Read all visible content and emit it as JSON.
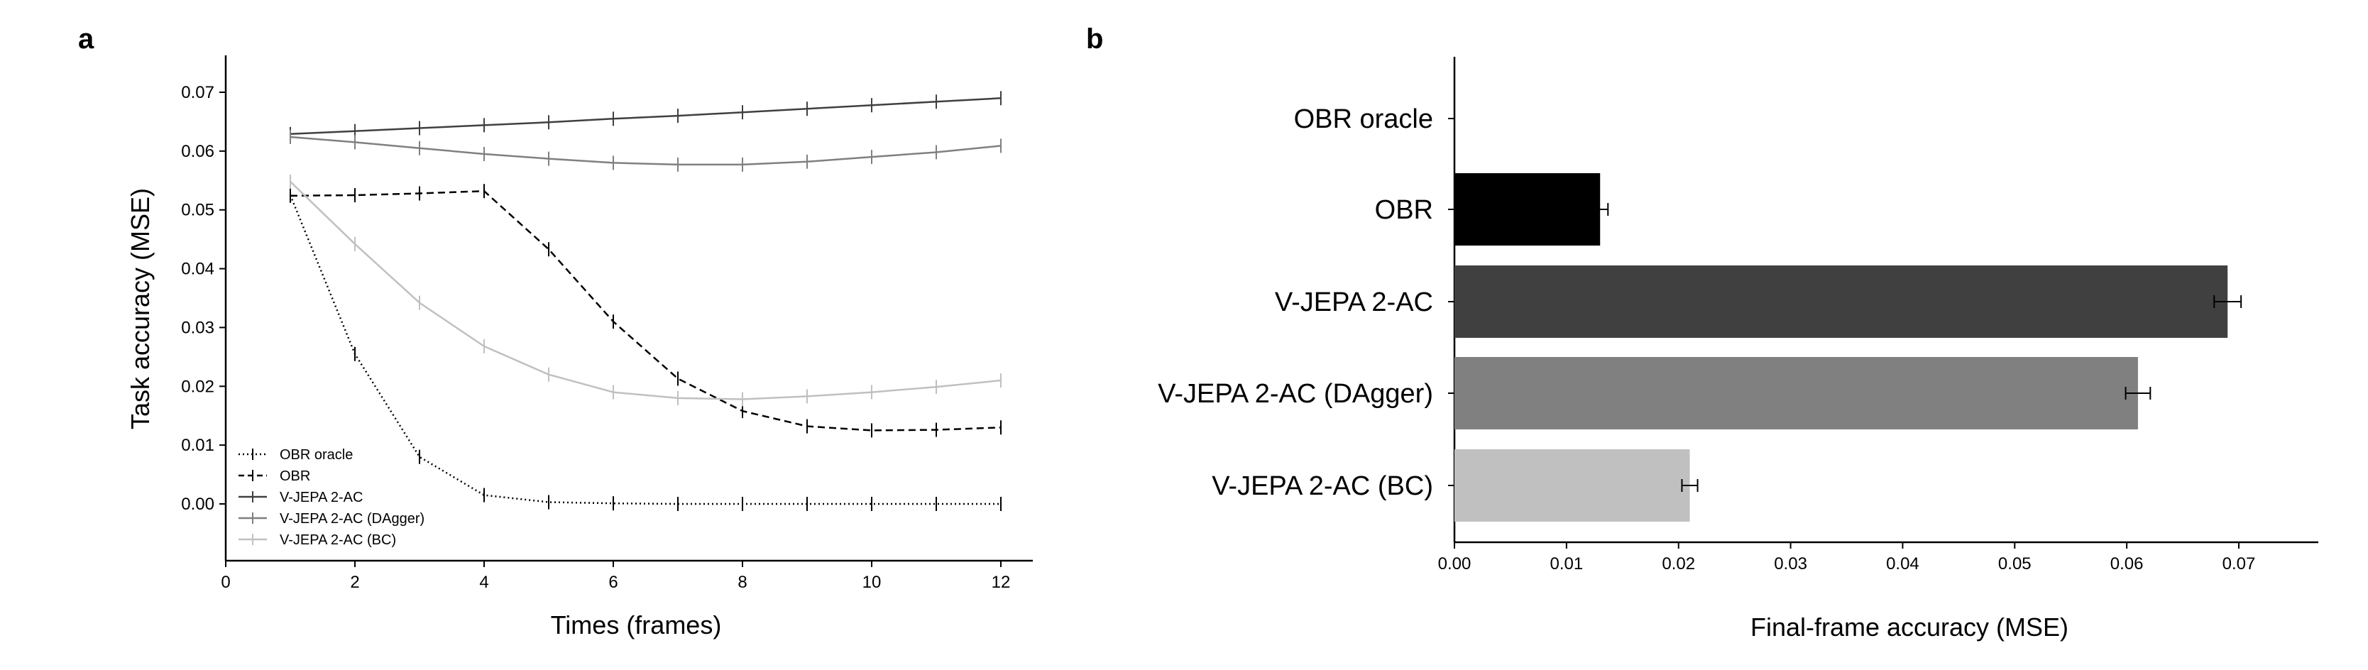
{
  "panels": {
    "a": {
      "label": "a"
    },
    "b": {
      "label": "b"
    }
  },
  "chart_data": [
    {
      "type": "line",
      "panel": "a",
      "xlabel": "Times (frames)",
      "ylabel": "Task accuracy (MSE)",
      "xlim": [
        0,
        12.5
      ],
      "ylim": [
        -0.01,
        0.0755
      ],
      "xticks": [
        0,
        2,
        4,
        6,
        8,
        10,
        12
      ],
      "yticks": [
        0.0,
        0.01,
        0.02,
        0.03,
        0.04,
        0.05,
        0.06,
        0.07
      ],
      "xtick_labels": [
        "0",
        "2",
        "4",
        "6",
        "8",
        "10",
        "12"
      ],
      "ytick_labels": [
        "0.00",
        "0.01",
        "0.02",
        "0.03",
        "0.04",
        "0.05",
        "0.06",
        "0.07"
      ],
      "x": [
        1,
        2,
        3,
        4,
        5,
        6,
        7,
        8,
        9,
        10,
        11,
        12
      ],
      "legend_position": "bottom-left",
      "series": [
        {
          "name": "OBR oracle",
          "color": "#000000",
          "style": "dotted",
          "values": [
            0.0525,
            0.0255,
            0.008,
            0.0015,
            0.0003,
            0.0001,
            0.0,
            0.0,
            0.0,
            0.0,
            0.0,
            0.0
          ]
        },
        {
          "name": "OBR",
          "color": "#000000",
          "style": "dashed",
          "values": [
            0.0524,
            0.0525,
            0.0528,
            0.0532,
            0.0433,
            0.031,
            0.0213,
            0.0158,
            0.0132,
            0.0125,
            0.0126,
            0.013
          ]
        },
        {
          "name": "V-JEPA 2-AC",
          "color": "#404040",
          "style": "solid",
          "values": [
            0.0629,
            0.0634,
            0.0639,
            0.0644,
            0.0649,
            0.0655,
            0.066,
            0.0666,
            0.0672,
            0.0678,
            0.0684,
            0.069
          ]
        },
        {
          "name": "V-JEPA 2-AC (DAgger)",
          "color": "#808080",
          "style": "solid",
          "values": [
            0.0624,
            0.0615,
            0.0605,
            0.0595,
            0.0587,
            0.058,
            0.0577,
            0.0577,
            0.0582,
            0.059,
            0.0598,
            0.0609
          ]
        },
        {
          "name": "V-JEPA 2-AC (BC)",
          "color": "#c0c0c0",
          "style": "solid",
          "values": [
            0.0548,
            0.0442,
            0.0342,
            0.0268,
            0.022,
            0.019,
            0.018,
            0.0178,
            0.0183,
            0.019,
            0.0199,
            0.021
          ]
        }
      ]
    },
    {
      "type": "bar",
      "orientation": "horizontal",
      "panel": "b",
      "xlabel": "Final-frame accuracy (MSE)",
      "ylabel": "",
      "xlim": [
        0,
        0.0795
      ],
      "xticks": [
        0.0,
        0.01,
        0.02,
        0.03,
        0.04,
        0.05,
        0.06,
        0.07
      ],
      "xtick_labels": [
        "0.00",
        "0.01",
        "0.02",
        "0.03",
        "0.04",
        "0.05",
        "0.06",
        "0.07"
      ],
      "categories": [
        "OBR oracle",
        "OBR",
        "V-JEPA 2-AC",
        "V-JEPA 2-AC (DAgger)",
        "V-JEPA 2-AC (BC)"
      ],
      "values": [
        0.0,
        0.013,
        0.069,
        0.061,
        0.021
      ],
      "errors": [
        0.0,
        0.0007,
        0.0012,
        0.0011,
        0.0007
      ],
      "colors": [
        "#000000",
        "#000000",
        "#404040",
        "#808080",
        "#c0c0c0"
      ]
    }
  ]
}
